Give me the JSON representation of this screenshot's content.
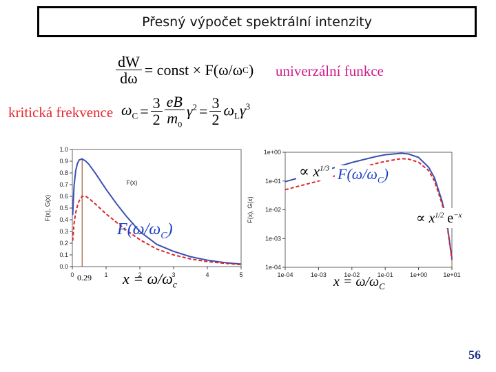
{
  "slide": {
    "title": "Přesný výpočet spektrální intenzity",
    "page_number": "56"
  },
  "equation1": {
    "lhs_num": "dW",
    "lhs_den": "dω",
    "rhs": "= const × F(ω/ω",
    "rhs_sub": "C",
    "rhs_close": ")",
    "label": "univerzální funkce"
  },
  "equation2": {
    "label": "kritická frekvence",
    "lhs": "ω",
    "lhs_sub": "C",
    "eq": "=",
    "frac1_num": "3",
    "frac1_den": "2",
    "frac2_num": "eB",
    "frac2_den": "m",
    "frac2_den_sub": "0",
    "gamma": "γ",
    "gamma_sup": "2",
    "frac3_num": "3",
    "frac3_den": "2",
    "omega_l": "ω",
    "omega_l_sub": "L",
    "gamma3": "γ",
    "gamma3_sup": "3"
  },
  "left_plot_overlay": {
    "func_label": "F(ω/ω",
    "func_sub": "C",
    "func_close": ")",
    "peak_label": "0.29",
    "x_eq": "x = ω/ω",
    "x_eq_sub": "c"
  },
  "right_plot_overlay": {
    "low_asym": "∝ x",
    "low_asym_sup": "1/3",
    "low_func": "F(ω/ω",
    "low_func_sub": "C",
    "low_func_close": ")",
    "high_asym": "∝ x",
    "high_asym_sup": "1/2",
    "high_exp": "e",
    "high_exp_sup": "−x",
    "x_eq": "x = ω/ω",
    "x_eq_sub": "C"
  },
  "chart_data": [
    {
      "type": "line",
      "ylabel": "F(x), G(x)",
      "xlim": [
        0,
        5
      ],
      "ylim": [
        0,
        1.0
      ],
      "x_ticks": [
        "0",
        "1",
        "2",
        "3",
        "4",
        "5"
      ],
      "y_ticks": [
        "0.0",
        "0.1",
        "0.2",
        "0.3",
        "0.4",
        "0.5",
        "0.6",
        "0.7",
        "0.8",
        "0.9",
        "1.0"
      ],
      "series": [
        {
          "name": "F(x)",
          "color": "#3a4fb5",
          "style": "solid",
          "x": [
            0.01,
            0.05,
            0.1,
            0.15,
            0.2,
            0.29,
            0.4,
            0.5,
            0.7,
            1.0,
            1.3,
            1.6,
            2.0,
            2.5,
            3.0,
            3.5,
            4.0,
            4.5,
            5.0
          ],
          "y": [
            0.44,
            0.69,
            0.82,
            0.88,
            0.91,
            0.92,
            0.9,
            0.87,
            0.79,
            0.66,
            0.54,
            0.43,
            0.3,
            0.19,
            0.13,
            0.085,
            0.055,
            0.035,
            0.021
          ]
        },
        {
          "name": "G(x)",
          "color": "#d9262c",
          "style": "dashed",
          "x": [
            0.01,
            0.05,
            0.1,
            0.15,
            0.2,
            0.29,
            0.4,
            0.5,
            0.7,
            1.0,
            1.3,
            1.6,
            2.0,
            2.5,
            3.0,
            3.5,
            4.0,
            4.5,
            5.0
          ],
          "y": [
            0.22,
            0.37,
            0.46,
            0.52,
            0.56,
            0.6,
            0.6,
            0.58,
            0.53,
            0.45,
            0.38,
            0.31,
            0.23,
            0.15,
            0.1,
            0.065,
            0.043,
            0.028,
            0.017
          ]
        }
      ],
      "annotation": "F(x)",
      "vertical_marker_x": 0.29
    },
    {
      "type": "line",
      "ylabel": "F(x), G(x)",
      "xscale": "log",
      "yscale": "log",
      "xlim": [
        0.0001,
        10
      ],
      "ylim": [
        0.0001,
        1
      ],
      "x_ticks": [
        "1e-04",
        "1e-03",
        "1e-02",
        "1e-01",
        "1e+00",
        "1e+01"
      ],
      "y_ticks": [
        "1e-04",
        "1e-03",
        "1e-02",
        "1e-01",
        "1e+00"
      ],
      "series": [
        {
          "name": "F(x)",
          "color": "#3a4fb5",
          "style": "solid",
          "x": [
            0.0001,
            0.001,
            0.01,
            0.05,
            0.1,
            0.3,
            0.5,
            1.0,
            2.0,
            3.0,
            5.0,
            7.0,
            10.0
          ],
          "y": [
            0.095,
            0.2,
            0.44,
            0.7,
            0.82,
            0.92,
            0.87,
            0.66,
            0.3,
            0.13,
            0.021,
            0.004,
            0.0002
          ]
        },
        {
          "name": "G(x)",
          "color": "#d9262c",
          "style": "dashed",
          "x": [
            0.0001,
            0.001,
            0.01,
            0.05,
            0.1,
            0.3,
            0.5,
            1.0,
            2.0,
            3.0,
            5.0,
            7.0,
            10.0
          ],
          "y": [
            0.05,
            0.1,
            0.23,
            0.4,
            0.48,
            0.6,
            0.58,
            0.45,
            0.23,
            0.1,
            0.017,
            0.0035,
            0.00018
          ]
        }
      ]
    }
  ]
}
